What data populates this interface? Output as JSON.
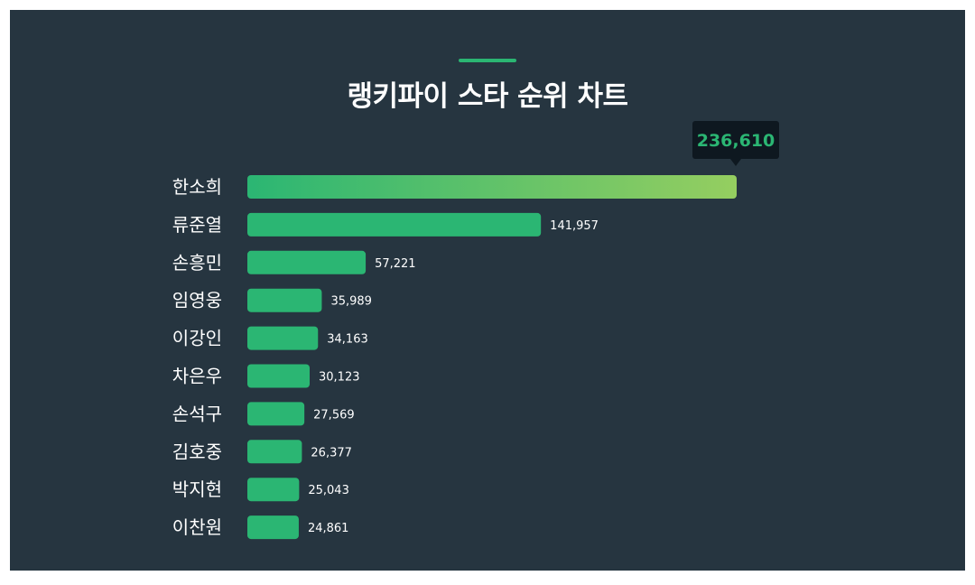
{
  "title": "랭키파이 스타 순위 차트",
  "colors": {
    "background": "#263540",
    "bar": "#2bb673",
    "bar_highlight_start": "#2bb673",
    "bar_highlight_end": "#95ce60",
    "tooltip_bg": "#0e1820",
    "tooltip_text": "#2bb673",
    "text": "#ffffff"
  },
  "chart_data": {
    "type": "bar",
    "orientation": "horizontal",
    "title": "랭키파이 스타 순위 차트",
    "categories": [
      "한소희",
      "류준열",
      "손흥민",
      "임영웅",
      "이강인",
      "차은우",
      "손석구",
      "김호중",
      "박지현",
      "이찬원"
    ],
    "values": [
      236610,
      141957,
      57221,
      35989,
      34163,
      30123,
      27569,
      26377,
      25043,
      24861
    ],
    "value_labels": [
      "236,610",
      "141,957",
      "57,221",
      "35,989",
      "34,163",
      "30,123",
      "27,569",
      "26,377",
      "25,043",
      "24,861"
    ],
    "highlight_index": 0,
    "xlim": [
      0,
      236610
    ],
    "grid": false,
    "legend": "none"
  }
}
